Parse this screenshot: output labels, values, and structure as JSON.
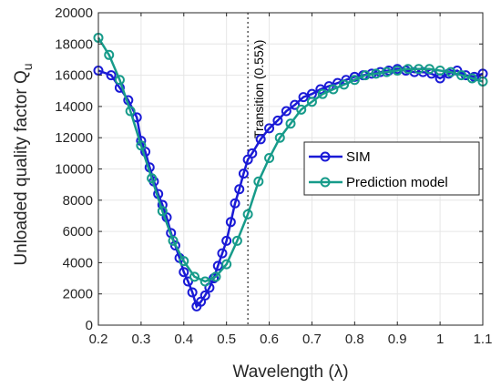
{
  "chart_data": {
    "type": "line",
    "xlabel": "Wavelength (λ)",
    "ylabel": "Unloaded quality factor Q",
    "ylabel_sub": "u",
    "xlim": [
      0.2,
      1.1
    ],
    "ylim": [
      0,
      20000
    ],
    "grid": true,
    "legend_position": "right",
    "x_ticks": [
      0.2,
      0.3,
      0.4,
      0.5,
      0.6,
      0.7,
      0.8,
      0.9,
      1,
      1.1
    ],
    "x_tick_labels": [
      "0.2",
      "0.3",
      "0.4",
      "0.5",
      "0.6",
      "0.7",
      "0.8",
      "0.9",
      "1",
      "1.1"
    ],
    "y_ticks": [
      0,
      2000,
      4000,
      6000,
      8000,
      10000,
      12000,
      14000,
      16000,
      18000,
      20000
    ],
    "y_tick_labels": [
      "0",
      "2000",
      "4000",
      "6000",
      "8000",
      "10000",
      "12000",
      "14000",
      "16000",
      "18000",
      "20000"
    ],
    "annotation": {
      "text": "Transition (0.55λ)",
      "x": 0.55
    },
    "series": [
      {
        "name": "SIM",
        "color": "#1a1ad6",
        "x": [
          0.2,
          0.23,
          0.25,
          0.27,
          0.29,
          0.3,
          0.31,
          0.32,
          0.33,
          0.34,
          0.35,
          0.36,
          0.37,
          0.38,
          0.39,
          0.4,
          0.41,
          0.42,
          0.43,
          0.44,
          0.45,
          0.46,
          0.47,
          0.48,
          0.49,
          0.5,
          0.51,
          0.52,
          0.53,
          0.54,
          0.55,
          0.56,
          0.58,
          0.6,
          0.62,
          0.64,
          0.66,
          0.68,
          0.7,
          0.72,
          0.74,
          0.76,
          0.78,
          0.8,
          0.82,
          0.84,
          0.86,
          0.88,
          0.9,
          0.92,
          0.94,
          0.96,
          0.98,
          1.0,
          1.02,
          1.04,
          1.06,
          1.08,
          1.1
        ],
        "y": [
          16300,
          16000,
          15200,
          14400,
          13300,
          11800,
          11100,
          10100,
          9200,
          8400,
          7700,
          6900,
          5900,
          5100,
          4300,
          3400,
          2800,
          2100,
          1200,
          1500,
          1900,
          2400,
          3000,
          3800,
          4600,
          5400,
          6600,
          7800,
          8700,
          9700,
          10600,
          11000,
          11900,
          12600,
          13100,
          13700,
          14100,
          14600,
          14800,
          15100,
          15300,
          15500,
          15700,
          15900,
          16000,
          16100,
          16200,
          16300,
          16400,
          16300,
          16200,
          16200,
          16100,
          15800,
          16100,
          16300,
          16000,
          15900,
          16100
        ]
      },
      {
        "name": "Prediction model",
        "color": "#179b8a",
        "x": [
          0.2,
          0.225,
          0.25,
          0.275,
          0.3,
          0.325,
          0.35,
          0.375,
          0.4,
          0.425,
          0.45,
          0.475,
          0.5,
          0.525,
          0.55,
          0.575,
          0.6,
          0.625,
          0.65,
          0.675,
          0.7,
          0.725,
          0.75,
          0.775,
          0.8,
          0.825,
          0.85,
          0.875,
          0.9,
          0.925,
          0.95,
          0.975,
          1.0,
          1.025,
          1.05,
          1.075,
          1.1
        ],
        "y": [
          18400,
          17300,
          15700,
          13700,
          11500,
          9400,
          7300,
          5400,
          4100,
          3100,
          2800,
          3100,
          3900,
          5400,
          7100,
          9200,
          10700,
          12000,
          12900,
          13800,
          14300,
          14800,
          15100,
          15400,
          15700,
          16000,
          16100,
          16200,
          16300,
          16400,
          16400,
          16400,
          16300,
          16200,
          16000,
          15800,
          15600
        ]
      }
    ]
  }
}
